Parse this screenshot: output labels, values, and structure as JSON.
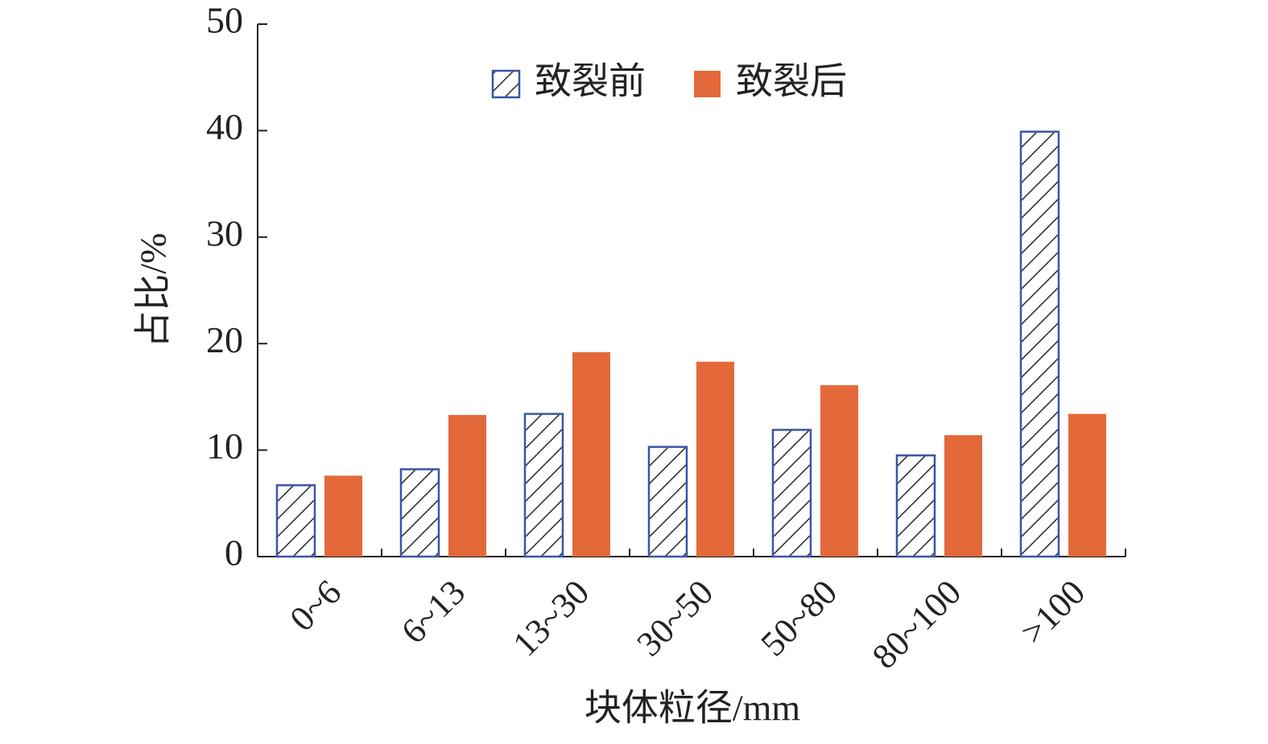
{
  "chart_data": {
    "type": "bar",
    "x_label": "块体粒径/mm",
    "y_label": "占比/%",
    "categories": [
      "0~6",
      "6~13",
      "13~30",
      "30~50",
      "50~80",
      "80~100",
      ">100"
    ],
    "series": [
      {
        "name": "致裂前",
        "color": "#3a56a6",
        "hatch": true,
        "values": [
          6.7,
          8.2,
          13.4,
          10.3,
          11.9,
          9.5,
          39.9
        ]
      },
      {
        "name": "致裂后",
        "color": "#e3693a",
        "hatch": false,
        "values": [
          7.6,
          13.3,
          19.2,
          18.3,
          16.1,
          11.4,
          13.4
        ]
      }
    ],
    "ylim": [
      0,
      50
    ],
    "yticks": [
      0,
      10,
      20,
      30,
      40,
      50
    ],
    "grid": false
  }
}
